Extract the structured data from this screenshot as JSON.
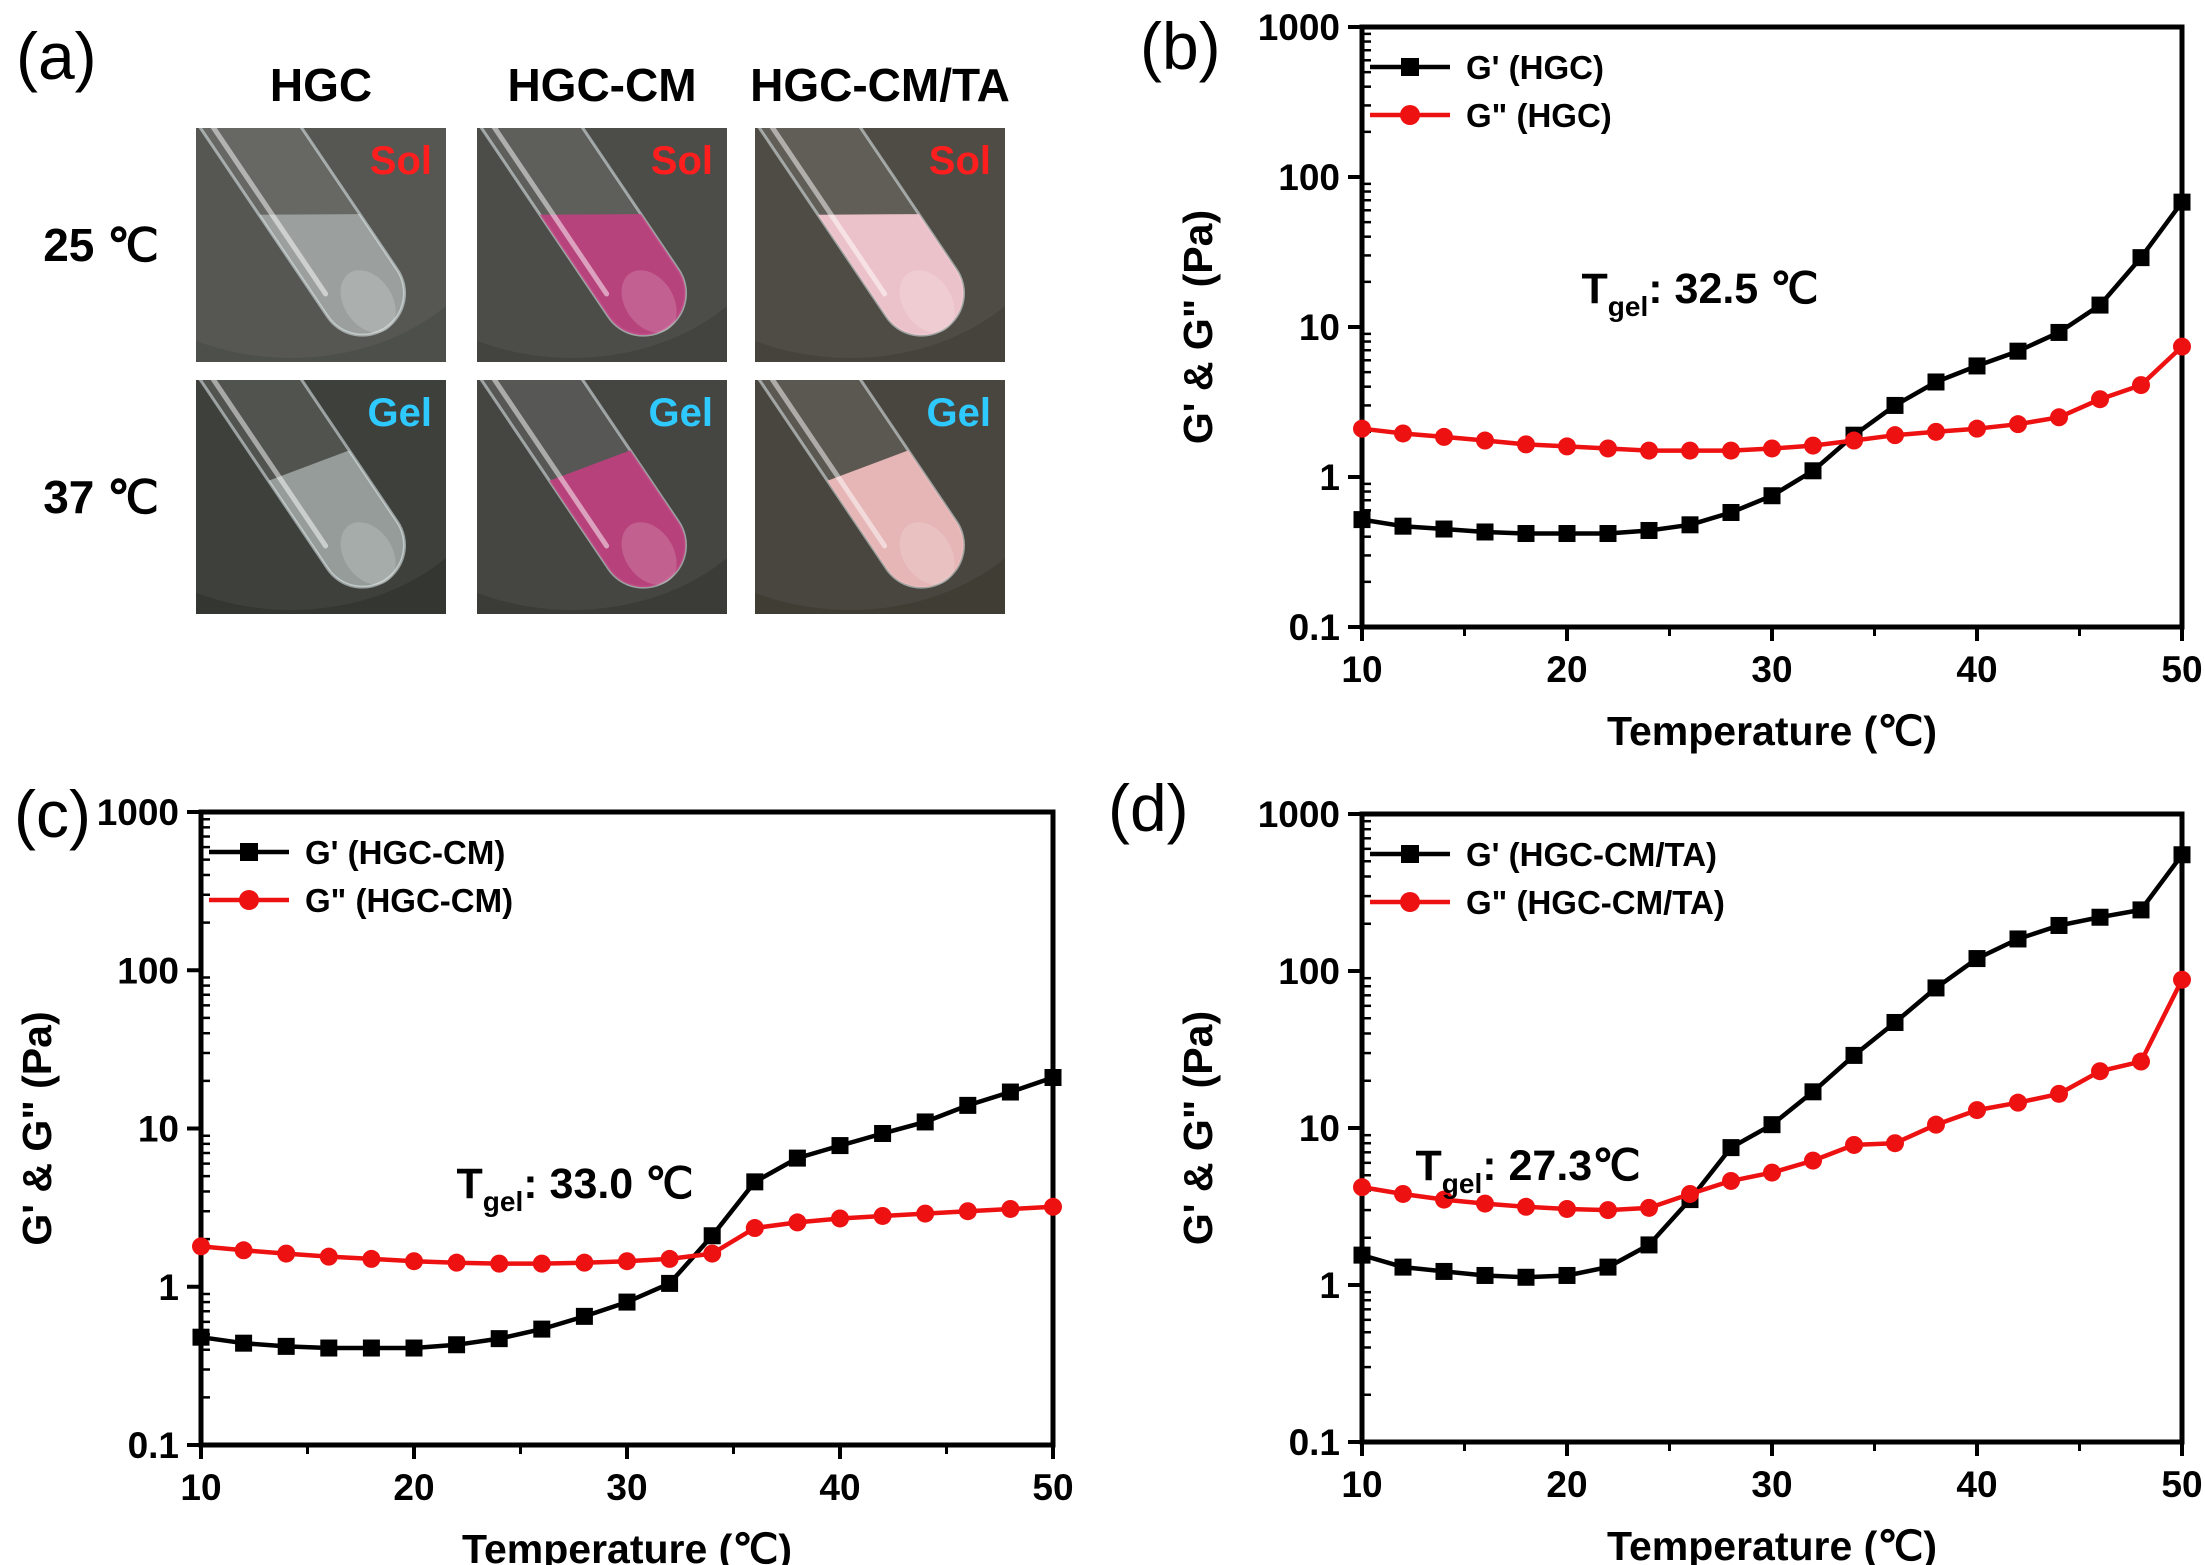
{
  "figure": {
    "background": "#ffffff"
  },
  "panel_a": {
    "label": "(a)",
    "column_headers": [
      "HGC",
      "HGC-CM",
      "HGC-CM/TA"
    ],
    "row_labels": [
      "25 ℃",
      "37 ℃"
    ],
    "sol_label": "Sol",
    "gel_label": "Gel",
    "sol_color": "#ff1e1e",
    "gel_color": "#2ec9ff",
    "cells": [
      {
        "state": "Sol",
        "state_color": "#ff1e1e",
        "bg": "#4d4f4a",
        "liquid": "rgba(228,238,238,0.42)",
        "desc": "clear transparent solution"
      },
      {
        "state": "Sol",
        "state_color": "#ff1e1e",
        "bg": "#434440",
        "liquid": "rgba(199,62,130,0.85)",
        "desc": "pink solution"
      },
      {
        "state": "Sol",
        "state_color": "#ff1e1e",
        "bg": "#46433c",
        "liquid": "rgba(243,199,209,0.95)",
        "desc": "pale pink suspension"
      },
      {
        "state": "Gel",
        "state_color": "#2ec9ff",
        "bg": "#343632",
        "liquid": "rgba(231,241,241,0.46)",
        "desc": "clear gel"
      },
      {
        "state": "Gel",
        "state_color": "#2ec9ff",
        "bg": "#3b3c38",
        "liquid": "rgba(194,64,127,0.9)",
        "desc": "pink gel"
      },
      {
        "state": "Gel",
        "state_color": "#2ec9ff",
        "bg": "#403d35",
        "liquid": "rgba(238,186,186,0.95)",
        "desc": "pale pink gel"
      }
    ]
  },
  "chart_data": [
    {
      "id": "b",
      "panel_label": "(b)",
      "type": "line",
      "xlabel": "Temperature (℃)",
      "ylabel": "G' & G\" (Pa)",
      "xlim": [
        10,
        50
      ],
      "ylim": [
        0.1,
        1000
      ],
      "yscale": "log",
      "grid": false,
      "legend_position": "top-left",
      "xticks": [
        10,
        20,
        30,
        40,
        50
      ],
      "yticks": [
        0.1,
        1,
        10,
        100,
        1000
      ],
      "x": [
        10,
        12,
        14,
        16,
        18,
        20,
        22,
        24,
        26,
        28,
        30,
        32,
        34,
        36,
        38,
        40,
        42,
        44,
        46,
        48,
        50
      ],
      "series": [
        {
          "name": "G' (HGC)",
          "color": "#000000",
          "marker": "square",
          "values": [
            0.52,
            0.47,
            0.45,
            0.43,
            0.42,
            0.42,
            0.42,
            0.44,
            0.48,
            0.58,
            0.75,
            1.1,
            1.9,
            3.0,
            4.3,
            5.5,
            6.9,
            9.2,
            14,
            29,
            68
          ]
        },
        {
          "name": "G\" (HGC)",
          "color": "#ee1111",
          "marker": "circle",
          "values": [
            2.1,
            1.95,
            1.85,
            1.75,
            1.65,
            1.6,
            1.55,
            1.5,
            1.5,
            1.5,
            1.55,
            1.62,
            1.75,
            1.9,
            2.0,
            2.1,
            2.25,
            2.5,
            3.3,
            4.1,
            7.4
          ]
        }
      ],
      "annotation": {
        "prefix": "T",
        "sub": "gel",
        "rest": ": 32.5 ℃",
        "value_c": 32.5
      }
    },
    {
      "id": "c",
      "panel_label": "(c)",
      "type": "line",
      "xlabel": "Temperature (℃)",
      "ylabel": "G' & G\" (Pa)",
      "xlim": [
        10,
        50
      ],
      "ylim": [
        0.1,
        1000
      ],
      "yscale": "log",
      "grid": false,
      "legend_position": "top-left",
      "xticks": [
        10,
        20,
        30,
        40,
        50
      ],
      "yticks": [
        0.1,
        1,
        10,
        100,
        1000
      ],
      "x": [
        10,
        12,
        14,
        16,
        18,
        20,
        22,
        24,
        26,
        28,
        30,
        32,
        34,
        36,
        38,
        40,
        42,
        44,
        46,
        48,
        50
      ],
      "series": [
        {
          "name": "G' (HGC-CM)",
          "color": "#000000",
          "marker": "square",
          "values": [
            0.48,
            0.44,
            0.42,
            0.41,
            0.41,
            0.41,
            0.43,
            0.47,
            0.54,
            0.65,
            0.8,
            1.05,
            2.1,
            4.6,
            6.5,
            7.8,
            9.3,
            11,
            14,
            17,
            21
          ]
        },
        {
          "name": "G\" (HGC-CM)",
          "color": "#ee1111",
          "marker": "circle",
          "values": [
            1.8,
            1.7,
            1.62,
            1.55,
            1.5,
            1.45,
            1.42,
            1.4,
            1.4,
            1.42,
            1.45,
            1.5,
            1.62,
            2.35,
            2.55,
            2.7,
            2.8,
            2.9,
            3.0,
            3.1,
            3.2
          ]
        }
      ],
      "annotation": {
        "prefix": "T",
        "sub": "gel",
        "rest": ": 33.0 ℃",
        "value_c": 33.0
      }
    },
    {
      "id": "d",
      "panel_label": "(d)",
      "type": "line",
      "xlabel": "Temperature (℃)",
      "ylabel": "G' & G\" (Pa)",
      "xlim": [
        10,
        50
      ],
      "ylim": [
        0.1,
        1000
      ],
      "yscale": "log",
      "grid": false,
      "legend_position": "top-left",
      "xticks": [
        10,
        20,
        30,
        40,
        50
      ],
      "yticks": [
        0.1,
        1,
        10,
        100,
        1000
      ],
      "x": [
        10,
        12,
        14,
        16,
        18,
        20,
        22,
        24,
        26,
        28,
        30,
        32,
        34,
        36,
        38,
        40,
        42,
        44,
        46,
        48,
        50
      ],
      "series": [
        {
          "name": "G' (HGC-CM/TA)",
          "color": "#000000",
          "marker": "square",
          "values": [
            1.55,
            1.3,
            1.22,
            1.15,
            1.12,
            1.15,
            1.3,
            1.8,
            3.5,
            7.5,
            10.5,
            17,
            29,
            47,
            78,
            120,
            160,
            195,
            220,
            245,
            550
          ]
        },
        {
          "name": "G\" (HGC-CM/TA)",
          "color": "#ee1111",
          "marker": "circle",
          "values": [
            4.2,
            3.8,
            3.5,
            3.3,
            3.15,
            3.05,
            3.0,
            3.1,
            3.8,
            4.6,
            5.2,
            6.2,
            7.8,
            8.0,
            10.5,
            13,
            14.5,
            16.5,
            23,
            26.5,
            88
          ]
        }
      ],
      "annotation": {
        "prefix": "T",
        "sub": "gel",
        "rest": ": 27.3℃",
        "value_c": 27.3
      }
    }
  ]
}
